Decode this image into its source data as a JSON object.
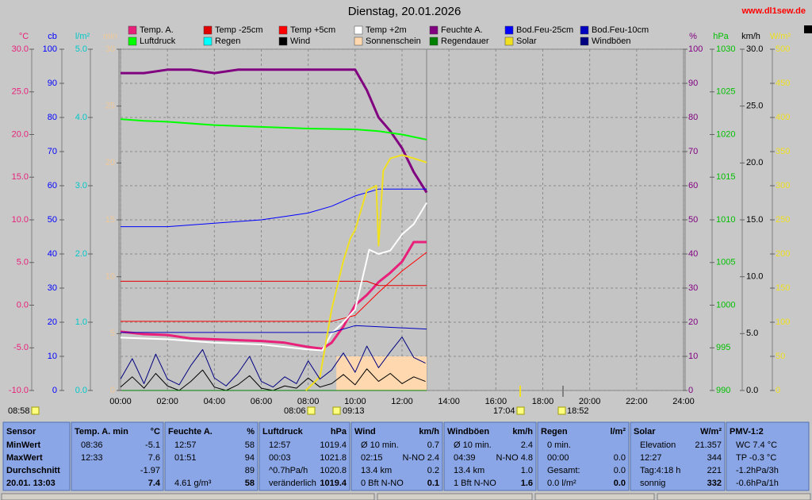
{
  "chart_data": {
    "type": "line",
    "title": "Dienstag, 20.01.2026",
    "watermark": "www.dl1sew.de",
    "grid": true,
    "xlim": [
      0,
      24
    ],
    "xticks": [
      {
        "value": 0,
        "label": "00:00"
      },
      {
        "value": 2,
        "label": "02:00"
      },
      {
        "value": 4,
        "label": "04:00"
      },
      {
        "value": 6,
        "label": "06:00"
      },
      {
        "value": 8,
        "label": "08:00"
      },
      {
        "value": 10,
        "label": "10:00"
      },
      {
        "value": 12,
        "label": "12:00"
      },
      {
        "value": 14,
        "label": "14:00"
      },
      {
        "value": 16,
        "label": "16:00"
      },
      {
        "value": 18,
        "label": "18:00"
      },
      {
        "value": 20,
        "label": "20:00"
      },
      {
        "value": 22,
        "label": "22:00"
      },
      {
        "value": 24,
        "label": "24:00"
      }
    ],
    "axes": [
      {
        "label": "°C",
        "color": "#e8207a",
        "side": "left",
        "lim": [
          -10,
          30
        ],
        "ticks": [
          {
            "value": -10,
            "label": "-10.0"
          },
          {
            "value": -5,
            "label": "-5.0"
          },
          {
            "value": 0,
            "label": "0.0"
          },
          {
            "value": 5,
            "label": "5.0"
          },
          {
            "value": 10,
            "label": "10.0"
          },
          {
            "value": 15,
            "label": "15.0"
          },
          {
            "value": 20,
            "label": "20.0"
          },
          {
            "value": 25,
            "label": "25.0"
          },
          {
            "value": 30,
            "label": "30.0"
          }
        ]
      },
      {
        "label": "cb",
        "color": "#0000ff",
        "side": "left",
        "lim": [
          0,
          100
        ],
        "ticks": [
          0,
          10,
          20,
          30,
          40,
          50,
          60,
          70,
          80,
          90,
          100
        ]
      },
      {
        "label": "l/m²",
        "color": "#00c8c8",
        "side": "left",
        "lim": [
          0,
          5
        ],
        "ticks": [
          {
            "value": 0,
            "label": "0.0"
          },
          {
            "value": 1,
            "label": "1.0"
          },
          {
            "value": 2,
            "label": "2.0"
          },
          {
            "value": 3,
            "label": "3.0"
          },
          {
            "value": 4,
            "label": "4.0"
          },
          {
            "value": 5,
            "label": "5.0"
          }
        ]
      },
      {
        "label": "min",
        "color": "#f0c898",
        "side": "left",
        "lim": [
          0,
          30
        ],
        "ticks": [
          0,
          5,
          10,
          15,
          20,
          25,
          30
        ]
      },
      {
        "label": "%",
        "color": "#800080",
        "side": "right",
        "grid": true,
        "lim": [
          0,
          100
        ],
        "ticks": [
          0,
          10,
          20,
          30,
          40,
          50,
          60,
          70,
          80,
          90,
          100
        ]
      },
      {
        "label": "hPa",
        "color": "#00c000",
        "side": "right",
        "lim": [
          990,
          1030
        ],
        "ticks": [
          990,
          995,
          1000,
          1005,
          1010,
          1015,
          1020,
          1025,
          1030
        ]
      },
      {
        "label": "km/h",
        "color": "#000000",
        "side": "right",
        "lim": [
          0,
          30
        ],
        "ticks": [
          {
            "value": 0,
            "label": "0.0"
          },
          {
            "value": 5,
            "label": "5.0"
          },
          {
            "value": 10,
            "label": "10.0"
          },
          {
            "value": 15,
            "label": "15.0"
          },
          {
            "value": 20,
            "label": "20.0"
          },
          {
            "value": 25,
            "label": "25.0"
          },
          {
            "value": 30,
            "label": "30.0"
          }
        ]
      },
      {
        "label": "W/m²",
        "color": "#f0e020",
        "side": "right",
        "lim": [
          0,
          500
        ],
        "ticks": [
          0,
          50,
          100,
          150,
          200,
          250,
          300,
          350,
          400,
          450,
          500
        ]
      }
    ],
    "series": [
      {
        "name": "Temp. A.",
        "color": "#e8207a",
        "axis": "°C",
        "width": 3,
        "x": [
          0,
          1,
          2,
          3,
          4,
          5,
          6,
          7,
          8,
          8.6,
          9,
          9.5,
          10,
          10.5,
          11,
          11.5,
          12,
          12.5,
          13.05
        ],
        "values": [
          -3.1,
          -3.4,
          -3.5,
          -3.9,
          -4.0,
          -4.1,
          -4.2,
          -4.4,
          -4.9,
          -5.1,
          -4.4,
          -2.5,
          0.0,
          1.2,
          2.7,
          3.8,
          5.1,
          7.4,
          7.4
        ]
      },
      {
        "name": "Temp -25cm",
        "color": "#e00000",
        "axis": "°C",
        "width": 1,
        "x": [
          0,
          10.5,
          11,
          13.05
        ],
        "values": [
          2.8,
          2.8,
          2.3,
          2.3
        ]
      },
      {
        "name": "Temp +5cm",
        "color": "#ff0000",
        "axis": "°C",
        "width": 1,
        "x": [
          0,
          9,
          10,
          11,
          12,
          13.05
        ],
        "values": [
          -1.9,
          -1.9,
          -1.2,
          1.5,
          4.0,
          6.2
        ]
      },
      {
        "name": "Temp +2m",
        "color": "#ffffff",
        "axis": "°C",
        "width": 2,
        "x": [
          0,
          2,
          4,
          6,
          8,
          8.6,
          9,
          9.5,
          10,
          10.3,
          10.6,
          11,
          11.5,
          12,
          12.5,
          13.05
        ],
        "values": [
          -3.8,
          -4.0,
          -4.4,
          -4.6,
          -5.2,
          -5.3,
          -3.3,
          -2.0,
          -0.5,
          3.0,
          6.5,
          6.0,
          6.4,
          8.3,
          9.5,
          12.0
        ]
      },
      {
        "name": "Feuchte A.",
        "color": "#800080",
        "axis": "%",
        "width": 3,
        "x": [
          0,
          1,
          2,
          3,
          4,
          5,
          6,
          7,
          8,
          9,
          10,
          10.5,
          11,
          11.5,
          12,
          12.5,
          13.05
        ],
        "values": [
          93,
          93,
          94,
          94,
          93,
          94,
          94,
          94,
          94,
          94,
          94,
          88,
          80,
          76,
          71,
          64,
          58
        ]
      },
      {
        "name": "Bod.Feu-25cm",
        "color": "#0000ff",
        "axis": "cb",
        "width": 1,
        "x": [
          0,
          2,
          4,
          6,
          7,
          8,
          9,
          10,
          11,
          13.05
        ],
        "values": [
          48,
          48,
          49,
          50,
          51,
          52,
          54,
          57,
          59,
          59
        ]
      },
      {
        "name": "Bod.Feu-10cm",
        "color": "#0000c0",
        "axis": "cb",
        "width": 1,
        "x": [
          0,
          9,
          10,
          13.05
        ],
        "values": [
          17,
          17,
          19,
          18
        ]
      },
      {
        "name": "Luftdruck",
        "color": "#00ff00",
        "axis": "hPa",
        "width": 2,
        "x": [
          0,
          1,
          2,
          4,
          6,
          8,
          10,
          11,
          12,
          13.05
        ],
        "values": [
          1021.8,
          1021.6,
          1021.5,
          1021.1,
          1020.9,
          1020.7,
          1020.6,
          1020.4,
          1020.0,
          1019.4
        ]
      },
      {
        "name": "Regen",
        "color": "#00ffff",
        "axis": "l/m²",
        "width": 1,
        "x": [
          0,
          13.05
        ],
        "values": [
          0,
          0
        ]
      },
      {
        "name": "Wind",
        "color": "#000000",
        "axis": "km/h",
        "width": 1,
        "x": [
          0,
          0.5,
          1,
          1.5,
          2,
          2.5,
          3,
          3.5,
          4,
          4.5,
          5,
          5.5,
          6,
          6.5,
          7,
          7.5,
          8,
          8.5,
          9,
          9.5,
          10,
          10.5,
          11,
          11.5,
          12,
          12.5,
          13
        ],
        "values": [
          0.3,
          1.2,
          0.2,
          1.5,
          0.4,
          0,
          0.8,
          1.8,
          0.3,
          0,
          0.5,
          1.3,
          0.2,
          0,
          0.4,
          0.2,
          1.1,
          0.3,
          0.6,
          1.4,
          0.5,
          1.9,
          0.8,
          1.5,
          0.6,
          1.2,
          0.8
        ]
      },
      {
        "name": "Sonnenschein",
        "color": "#ffd8b0",
        "axis": "min",
        "style": "area",
        "width": 1,
        "x": [
          9.2,
          13.05
        ],
        "values": [
          3,
          3
        ]
      },
      {
        "name": "Regendauer",
        "color": "#008000",
        "axis": "min",
        "width": 1,
        "x": [
          0,
          13.05
        ],
        "values": [
          0,
          0
        ]
      },
      {
        "name": "Solar",
        "color": "#f0e020",
        "axis": "W/m²",
        "width": 2,
        "x": [
          7.9,
          8.5,
          9,
          9.5,
          9.8,
          10,
          10.5,
          10.9,
          11,
          11.2,
          11.5,
          12,
          12.5,
          13.05
        ],
        "values": [
          0,
          20,
          119,
          190,
          223,
          235,
          293,
          300,
          212,
          322,
          340,
          345,
          340,
          334
        ]
      },
      {
        "name": "Windböen",
        "color": "#000080",
        "axis": "km/h",
        "width": 1,
        "x": [
          0,
          0.5,
          1,
          1.5,
          2,
          2.5,
          3,
          3.5,
          4,
          4.5,
          5,
          5.5,
          6,
          6.5,
          7,
          7.5,
          8,
          8.5,
          9,
          9.5,
          10,
          10.5,
          11,
          11.5,
          12,
          12.5,
          13
        ],
        "values": [
          1.0,
          2.8,
          0.6,
          3.2,
          1.0,
          0.5,
          2.2,
          3.6,
          1.1,
          0.4,
          1.5,
          3.0,
          0.8,
          0.3,
          1.2,
          0.6,
          2.6,
          1.0,
          1.8,
          3.3,
          1.6,
          3.9,
          2.0,
          3.4,
          4.7,
          2.9,
          2.4
        ]
      }
    ],
    "markers": [
      {
        "label": "08:58"
      },
      {
        "label": "08:06"
      },
      {
        "label": "09:13"
      },
      {
        "label": "17:04"
      },
      {
        "label": "18:52"
      }
    ]
  },
  "table": {
    "blocks": [
      {
        "lines": [
          {
            "left": "Sensor"
          },
          {
            "left": "MinWert"
          },
          {
            "left": "MaxWert"
          },
          {
            "left": "Durchschnitt"
          },
          {
            "left": "20.01. 13:03"
          }
        ]
      },
      {
        "lines": [
          {
            "left": "Temp. A. min",
            "right": "°C"
          },
          {
            "left": "08:36",
            "right": "-5.1"
          },
          {
            "left": "12:33",
            "right": "7.6"
          },
          {
            "right": "-1.97"
          },
          {
            "right": "7.4"
          }
        ]
      },
      {
        "lines": [
          {
            "left": "Feuchte A.",
            "right": "%"
          },
          {
            "left": "12:57",
            "right": "58"
          },
          {
            "left": "01:51",
            "right": "94"
          },
          {
            "right": "89"
          },
          {
            "left": "4.61 g/m³",
            "right": "58"
          }
        ]
      },
      {
        "lines": [
          {
            "left": "Luftdruck",
            "right": "hPa"
          },
          {
            "left": "12:57",
            "right": "1019.4"
          },
          {
            "left": "00:03",
            "right": "1021.8"
          },
          {
            "left": "^0.7hPa/h",
            "right": "1020.8"
          },
          {
            "left": "veränderlich",
            "right": "1019.4"
          }
        ]
      },
      {
        "lines": [
          {
            "left": "Wind",
            "right": "km/h"
          },
          {
            "left": "Ø 10 min.",
            "right": "0.7"
          },
          {
            "left": "02:15",
            "right": "N-NO 2.4"
          },
          {
            "left": "13.4 km",
            "right": "0.2"
          },
          {
            "left": "0 Bft N-NO",
            "right": "0.1"
          }
        ]
      },
      {
        "lines": [
          {
            "left": "Windböen",
            "right": "km/h"
          },
          {
            "left": "Ø 10 min.",
            "right": "2.4"
          },
          {
            "left": "04:39",
            "right": "N-NO 4.8"
          },
          {
            "left": "13.4 km",
            "right": "1.0"
          },
          {
            "left": "1 Bft N-NO",
            "right": "1.6"
          }
        ]
      },
      {
        "lines": [
          {
            "left": "Regen",
            "right": "l/m²"
          },
          {
            "left": "0 min."
          },
          {
            "left": "00:00",
            "right": "0.0"
          },
          {
            "left": "Gesamt:",
            "right": "0.0"
          },
          {
            "left": "0.0 l/m²",
            "right": "0.0"
          }
        ]
      },
      {
        "lines": [
          {
            "left": "Solar",
            "right": "W/m²"
          },
          {
            "left": "Elevation",
            "right": "21.357"
          },
          {
            "left": "12:27",
            "right": "344"
          },
          {
            "left": "Tag:4:18 h",
            "right": "221"
          },
          {
            "left": "sonnig",
            "right": "332"
          }
        ]
      },
      {
        "lines": [
          {
            "left": "PMV-1:2"
          },
          {
            "left": "WC 7.4 °C"
          },
          {
            "left": "TP -0.3 °C"
          },
          {
            "left": "-1.2hPa/3h"
          },
          {
            "left": "-0.6hPa/1h"
          }
        ]
      }
    ]
  }
}
